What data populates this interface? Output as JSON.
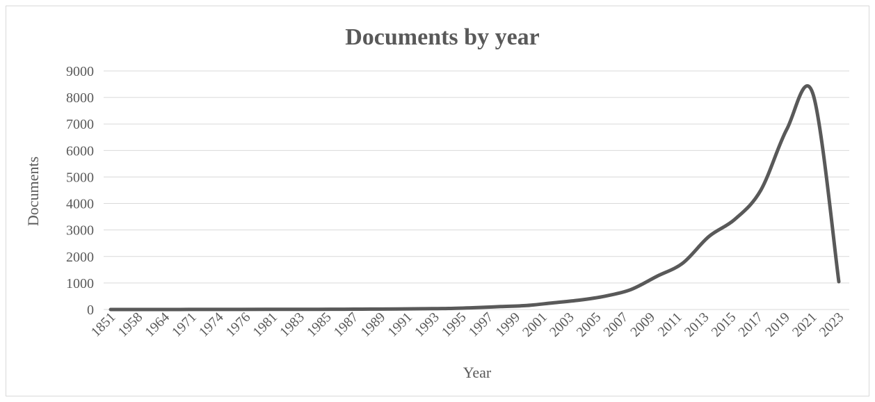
{
  "chart_data": {
    "type": "line",
    "title": "Documents by year",
    "xlabel": "Year",
    "ylabel": "Documents",
    "ylim": [
      0,
      9000
    ],
    "yticks": [
      "0",
      "1000",
      "2000",
      "3000",
      "4000",
      "5000",
      "6000",
      "7000",
      "8000",
      "9000"
    ],
    "grid": true,
    "legend": "none",
    "series_color": "#595959",
    "categories": [
      "1851",
      "1958",
      "1964",
      "1971",
      "1974",
      "1976",
      "1981",
      "1983",
      "1985",
      "1987",
      "1989",
      "1991",
      "1993",
      "1995",
      "1997",
      "1999",
      "2001",
      "2003",
      "2005",
      "2007",
      "2009",
      "2011",
      "2013",
      "2015",
      "2017",
      "2019",
      "2021",
      "2023"
    ],
    "x": [
      "1851",
      "1958",
      "1964",
      "1971",
      "1974",
      "1976",
      "1981",
      "1983",
      "1985",
      "1987",
      "1989",
      "1991",
      "1993",
      "1995",
      "1997",
      "1999",
      "2001",
      "2003",
      "2005",
      "2007",
      "2009",
      "2011",
      "2013",
      "2015",
      "2017",
      "2019",
      "2021",
      "2022",
      "2023"
    ],
    "values": [
      1,
      1,
      1,
      2,
      3,
      4,
      5,
      6,
      8,
      10,
      15,
      20,
      30,
      40,
      70,
      110,
      150,
      250,
      350,
      500,
      750,
      1250,
      1750,
      2750,
      3400,
      4500,
      6800,
      8150,
      1050
    ]
  }
}
